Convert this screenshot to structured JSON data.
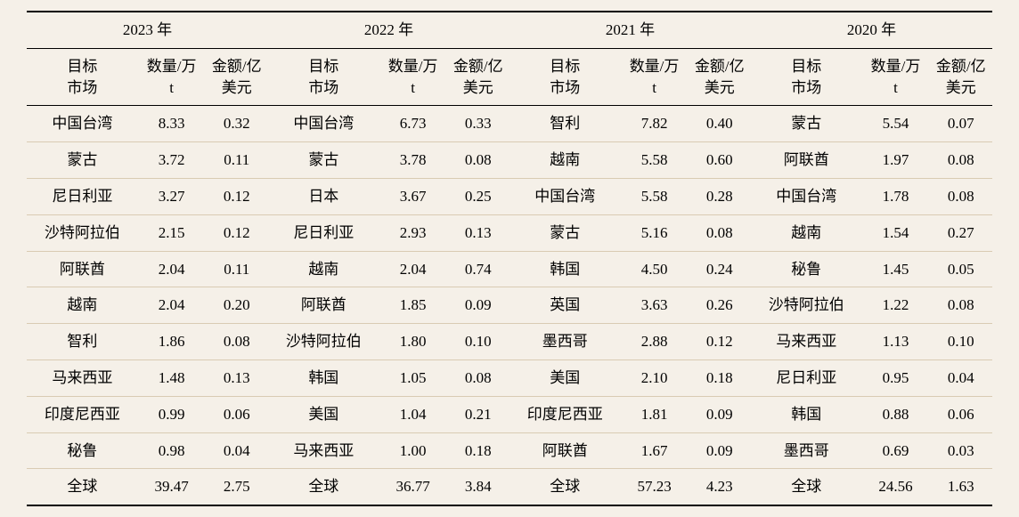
{
  "type": "table",
  "background_color": "#f5f0e8",
  "rule_color": "#000000",
  "row_divider_color": "#d9cbb3",
  "font_family": "SimSun",
  "header_fontsize_pt": 13,
  "body_fontsize_pt": 13,
  "col_widths_pct": {
    "market": 11.5,
    "qty": 7.0,
    "amt": 6.5
  },
  "years": [
    "2023 年",
    "2022 年",
    "2021 年",
    "2020 年"
  ],
  "sub_headers": {
    "market": "目标\n市场",
    "qty": "数量/万\nt",
    "amt": "金额/亿\n美元"
  },
  "years_data": {
    "2023": [
      {
        "market": "中国台湾",
        "qty": "8.33",
        "amt": "0.32"
      },
      {
        "market": "蒙古",
        "qty": "3.72",
        "amt": "0.11"
      },
      {
        "market": "尼日利亚",
        "qty": "3.27",
        "amt": "0.12"
      },
      {
        "market": "沙特阿拉伯",
        "qty": "2.15",
        "amt": "0.12"
      },
      {
        "market": "阿联酋",
        "qty": "2.04",
        "amt": "0.11"
      },
      {
        "market": "越南",
        "qty": "2.04",
        "amt": "0.20"
      },
      {
        "market": "智利",
        "qty": "1.86",
        "amt": "0.08"
      },
      {
        "market": "马来西亚",
        "qty": "1.48",
        "amt": "0.13"
      },
      {
        "market": "印度尼西亚",
        "qty": "0.99",
        "amt": "0.06"
      },
      {
        "market": "秘鲁",
        "qty": "0.98",
        "amt": "0.04"
      },
      {
        "market": "全球",
        "qty": "39.47",
        "amt": "2.75"
      }
    ],
    "2022": [
      {
        "market": "中国台湾",
        "qty": "6.73",
        "amt": "0.33"
      },
      {
        "market": "蒙古",
        "qty": "3.78",
        "amt": "0.08"
      },
      {
        "market": "日本",
        "qty": "3.67",
        "amt": "0.25"
      },
      {
        "market": "尼日利亚",
        "qty": "2.93",
        "amt": "0.13"
      },
      {
        "market": "越南",
        "qty": "2.04",
        "amt": "0.74"
      },
      {
        "market": "阿联酋",
        "qty": "1.85",
        "amt": "0.09"
      },
      {
        "market": "沙特阿拉伯",
        "qty": "1.80",
        "amt": "0.10"
      },
      {
        "market": "韩国",
        "qty": "1.05",
        "amt": "0.08"
      },
      {
        "market": "美国",
        "qty": "1.04",
        "amt": "0.21"
      },
      {
        "market": "马来西亚",
        "qty": "1.00",
        "amt": "0.18"
      },
      {
        "market": "全球",
        "qty": "36.77",
        "amt": "3.84"
      }
    ],
    "2021": [
      {
        "market": "智利",
        "qty": "7.82",
        "amt": "0.40"
      },
      {
        "market": "越南",
        "qty": "5.58",
        "amt": "0.60"
      },
      {
        "market": "中国台湾",
        "qty": "5.58",
        "amt": "0.28"
      },
      {
        "market": "蒙古",
        "qty": "5.16",
        "amt": "0.08"
      },
      {
        "market": "韩国",
        "qty": "4.50",
        "amt": "0.24"
      },
      {
        "market": "英国",
        "qty": "3.63",
        "amt": "0.26"
      },
      {
        "market": "墨西哥",
        "qty": "2.88",
        "amt": "0.12"
      },
      {
        "market": "美国",
        "qty": "2.10",
        "amt": "0.18"
      },
      {
        "market": "印度尼西亚",
        "qty": "1.81",
        "amt": "0.09"
      },
      {
        "market": "阿联酋",
        "qty": "1.67",
        "amt": "0.09"
      },
      {
        "market": "全球",
        "qty": "57.23",
        "amt": "4.23"
      }
    ],
    "2020": [
      {
        "market": "蒙古",
        "qty": "5.54",
        "amt": "0.07"
      },
      {
        "market": "阿联酋",
        "qty": "1.97",
        "amt": "0.08"
      },
      {
        "market": "中国台湾",
        "qty": "1.78",
        "amt": "0.08"
      },
      {
        "market": "越南",
        "qty": "1.54",
        "amt": "0.27"
      },
      {
        "market": "秘鲁",
        "qty": "1.45",
        "amt": "0.05"
      },
      {
        "market": "沙特阿拉伯",
        "qty": "1.22",
        "amt": "0.08"
      },
      {
        "market": "马来西亚",
        "qty": "1.13",
        "amt": "0.10"
      },
      {
        "market": "尼日利亚",
        "qty": "0.95",
        "amt": "0.04"
      },
      {
        "market": "韩国",
        "qty": "0.88",
        "amt": "0.06"
      },
      {
        "market": "墨西哥",
        "qty": "0.69",
        "amt": "0.03"
      },
      {
        "market": "全球",
        "qty": "24.56",
        "amt": "1.63"
      }
    ]
  },
  "year_keys": [
    "2023",
    "2022",
    "2021",
    "2020"
  ],
  "row_count": 11
}
